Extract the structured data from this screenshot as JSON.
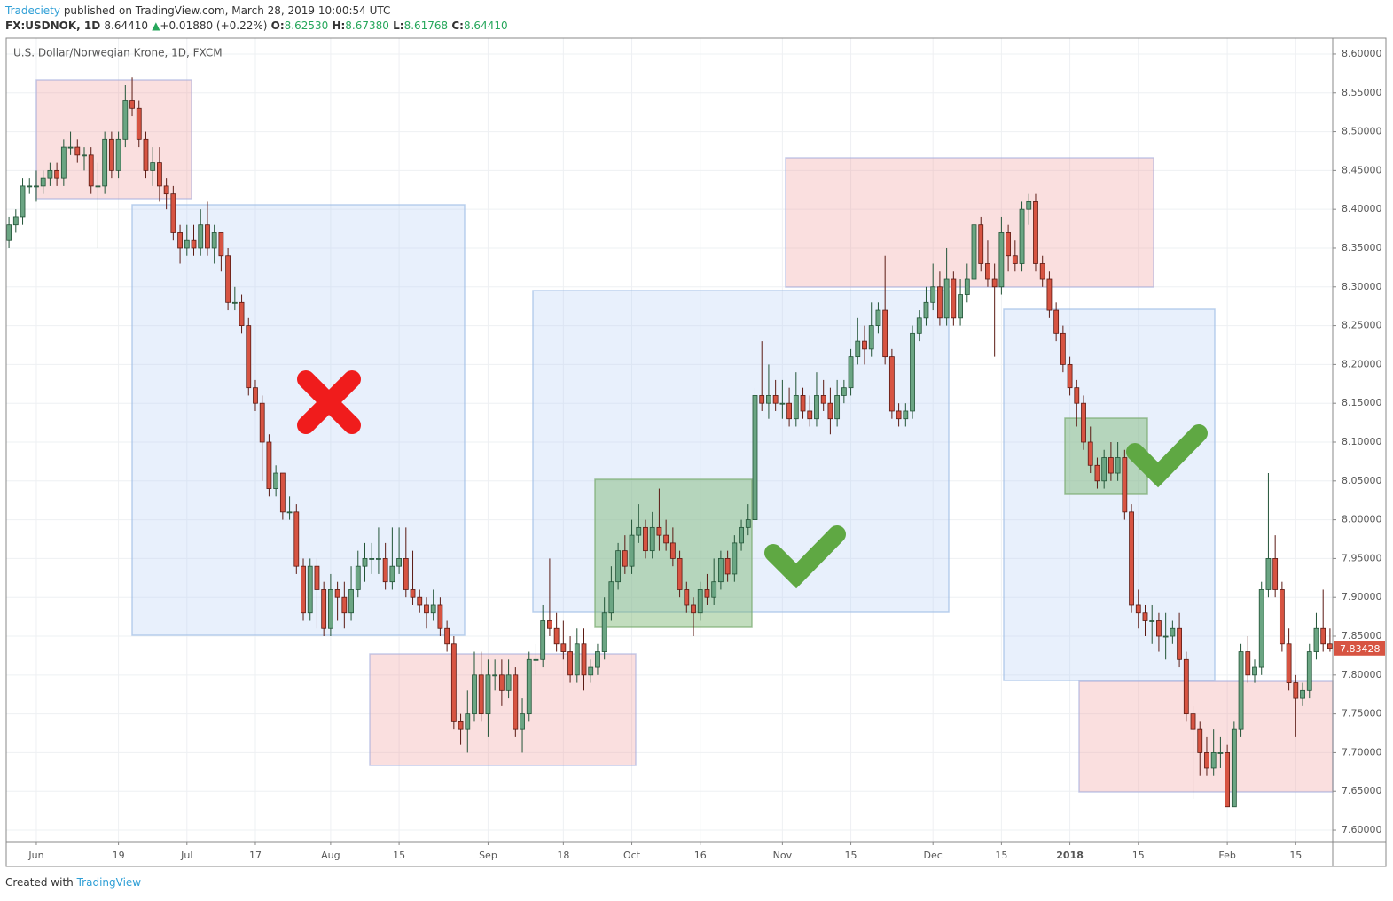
{
  "header": {
    "author": "Tradeciety",
    "published": "published on TradingView.com, March 28, 2019 10:00:54 UTC",
    "symbol": "FX:USDNOK, 1D",
    "last": "8.64410",
    "arrow": "▲",
    "change": "+0.01880 (+0.22%)",
    "o_label": "O:",
    "o": "8.62530",
    "h_label": "H:",
    "h": "8.67380",
    "l_label": "L:",
    "l": "8.61768",
    "c_label": "C:",
    "c": "8.64410"
  },
  "footer": {
    "prefix": "Created with",
    "brand": "TradingView"
  },
  "chart_data": {
    "type": "candlestick",
    "title": "U.S. Dollar/Norwegian Krone, 1D, FXCM",
    "up_color": "#6ba583",
    "down_color": "#d75442",
    "last_color": "#d75442",
    "grid": true,
    "xlim": [
      -0.4,
      193.4
    ],
    "ylim": [
      7.5852,
      8.6205
    ],
    "xticks": [
      {
        "value": 4,
        "label": "Jun"
      },
      {
        "value": 16,
        "label": "19"
      },
      {
        "value": 26,
        "label": "Jul"
      },
      {
        "value": 36,
        "label": "17"
      },
      {
        "value": 47,
        "label": "Aug"
      },
      {
        "value": 57,
        "label": "15"
      },
      {
        "value": 70,
        "label": "Sep"
      },
      {
        "value": 81,
        "label": "18"
      },
      {
        "value": 91,
        "label": "Oct"
      },
      {
        "value": 101,
        "label": "16"
      },
      {
        "value": 113,
        "label": "Nov"
      },
      {
        "value": 123,
        "label": "15"
      },
      {
        "value": 135,
        "label": "Dec"
      },
      {
        "value": 145,
        "label": "15"
      },
      {
        "value": 155,
        "label": "2018"
      },
      {
        "value": 165,
        "label": "15"
      },
      {
        "value": 178,
        "label": "Feb"
      },
      {
        "value": 188,
        "label": "15"
      }
    ],
    "yticks": [
      {
        "value": 7.6,
        "label": "7.60000"
      },
      {
        "value": 7.65,
        "label": "7.65000"
      },
      {
        "value": 7.7,
        "label": "7.70000"
      },
      {
        "value": 7.75,
        "label": "7.75000"
      },
      {
        "value": 7.8,
        "label": "7.80000"
      },
      {
        "value": 7.85,
        "label": "7.85000"
      },
      {
        "value": 7.9,
        "label": "7.90000"
      },
      {
        "value": 7.95,
        "label": "7.95000"
      },
      {
        "value": 8.0,
        "label": "8.00000"
      },
      {
        "value": 8.05,
        "label": "8.05000"
      },
      {
        "value": 8.1,
        "label": "8.10000"
      },
      {
        "value": 8.15,
        "label": "8.15000"
      },
      {
        "value": 8.2,
        "label": "8.20000"
      },
      {
        "value": 8.25,
        "label": "8.25000"
      },
      {
        "value": 8.3,
        "label": "8.30000"
      },
      {
        "value": 8.35,
        "label": "8.35000"
      },
      {
        "value": 8.4,
        "label": "8.40000"
      },
      {
        "value": 8.45,
        "label": "8.45000"
      },
      {
        "value": 8.5,
        "label": "8.50000"
      },
      {
        "value": 8.55,
        "label": "8.55000"
      },
      {
        "value": 8.6,
        "label": "8.60000"
      }
    ],
    "candles": [
      [
        8.36,
        8.39,
        8.35,
        8.38
      ],
      [
        8.38,
        8.4,
        8.37,
        8.39
      ],
      [
        8.39,
        8.44,
        8.38,
        8.43
      ],
      [
        8.43,
        8.44,
        8.42,
        8.43
      ],
      [
        8.43,
        8.45,
        8.41,
        8.43
      ],
      [
        8.43,
        8.45,
        8.42,
        8.44
      ],
      [
        8.44,
        8.46,
        8.43,
        8.45
      ],
      [
        8.45,
        8.46,
        8.43,
        8.44
      ],
      [
        8.44,
        8.49,
        8.43,
        8.48
      ],
      [
        8.48,
        8.5,
        8.47,
        8.48
      ],
      [
        8.48,
        8.49,
        8.46,
        8.47
      ],
      [
        8.47,
        8.48,
        8.45,
        8.47
      ],
      [
        8.47,
        8.48,
        8.42,
        8.43
      ],
      [
        8.43,
        8.46,
        8.35,
        8.43
      ],
      [
        8.43,
        8.5,
        8.42,
        8.49
      ],
      [
        8.49,
        8.5,
        8.44,
        8.45
      ],
      [
        8.45,
        8.5,
        8.44,
        8.49
      ],
      [
        8.49,
        8.56,
        8.48,
        8.54
      ],
      [
        8.54,
        8.57,
        8.52,
        8.53
      ],
      [
        8.53,
        8.54,
        8.48,
        8.49
      ],
      [
        8.49,
        8.5,
        8.44,
        8.45
      ],
      [
        8.45,
        8.48,
        8.43,
        8.46
      ],
      [
        8.46,
        8.48,
        8.41,
        8.43
      ],
      [
        8.43,
        8.44,
        8.4,
        8.42
      ],
      [
        8.42,
        8.43,
        8.36,
        8.37
      ],
      [
        8.37,
        8.38,
        8.33,
        8.35
      ],
      [
        8.35,
        8.38,
        8.34,
        8.36
      ],
      [
        8.36,
        8.38,
        8.34,
        8.35
      ],
      [
        8.35,
        8.4,
        8.34,
        8.38
      ],
      [
        8.38,
        8.41,
        8.34,
        8.35
      ],
      [
        8.35,
        8.38,
        8.33,
        8.37
      ],
      [
        8.37,
        8.37,
        8.32,
        8.34
      ],
      [
        8.34,
        8.35,
        8.27,
        8.28
      ],
      [
        8.28,
        8.3,
        8.27,
        8.28
      ],
      [
        8.28,
        8.29,
        8.24,
        8.25
      ],
      [
        8.25,
        8.26,
        8.16,
        8.17
      ],
      [
        8.17,
        8.18,
        8.14,
        8.15
      ],
      [
        8.15,
        8.16,
        8.05,
        8.1
      ],
      [
        8.1,
        8.11,
        8.03,
        8.04
      ],
      [
        8.04,
        8.07,
        8.03,
        8.06
      ],
      [
        8.06,
        8.06,
        8.0,
        8.01
      ],
      [
        8.01,
        8.03,
        8.0,
        8.01
      ],
      [
        8.01,
        8.02,
        7.93,
        7.94
      ],
      [
        7.94,
        7.95,
        7.87,
        7.88
      ],
      [
        7.88,
        7.95,
        7.87,
        7.94
      ],
      [
        7.94,
        7.95,
        7.86,
        7.91
      ],
      [
        7.91,
        7.92,
        7.85,
        7.86
      ],
      [
        7.86,
        7.93,
        7.85,
        7.91
      ],
      [
        7.91,
        7.92,
        7.87,
        7.9
      ],
      [
        7.9,
        7.92,
        7.86,
        7.88
      ],
      [
        7.88,
        7.94,
        7.87,
        7.91
      ],
      [
        7.91,
        7.96,
        7.9,
        7.94
      ],
      [
        7.94,
        7.97,
        7.92,
        7.95
      ],
      [
        7.95,
        7.97,
        7.93,
        7.95
      ],
      [
        7.95,
        7.99,
        7.93,
        7.95
      ],
      [
        7.95,
        7.97,
        7.91,
        7.92
      ],
      [
        7.92,
        7.99,
        7.91,
        7.94
      ],
      [
        7.94,
        7.99,
        7.93,
        7.95
      ],
      [
        7.95,
        7.99,
        7.9,
        7.91
      ],
      [
        7.91,
        7.96,
        7.89,
        7.9
      ],
      [
        7.9,
        7.91,
        7.88,
        7.89
      ],
      [
        7.89,
        7.9,
        7.86,
        7.88
      ],
      [
        7.88,
        7.91,
        7.87,
        7.89
      ],
      [
        7.89,
        7.9,
        7.85,
        7.86
      ],
      [
        7.86,
        7.87,
        7.83,
        7.84
      ],
      [
        7.84,
        7.85,
        7.73,
        7.74
      ],
      [
        7.74,
        7.75,
        7.71,
        7.73
      ],
      [
        7.73,
        7.78,
        7.7,
        7.75
      ],
      [
        7.75,
        7.83,
        7.74,
        7.8
      ],
      [
        7.8,
        7.83,
        7.74,
        7.75
      ],
      [
        7.75,
        7.82,
        7.72,
        7.8
      ],
      [
        7.8,
        7.82,
        7.78,
        7.8
      ],
      [
        7.8,
        7.82,
        7.76,
        7.78
      ],
      [
        7.78,
        7.82,
        7.77,
        7.8
      ],
      [
        7.8,
        7.81,
        7.72,
        7.73
      ],
      [
        7.73,
        7.77,
        7.7,
        7.75
      ],
      [
        7.75,
        7.83,
        7.74,
        7.82
      ],
      [
        7.82,
        7.84,
        7.8,
        7.82
      ],
      [
        7.82,
        7.89,
        7.81,
        7.87
      ],
      [
        7.87,
        7.95,
        7.85,
        7.86
      ],
      [
        7.86,
        7.88,
        7.83,
        7.84
      ],
      [
        7.84,
        7.87,
        7.82,
        7.83
      ],
      [
        7.83,
        7.85,
        7.79,
        7.8
      ],
      [
        7.8,
        7.86,
        7.79,
        7.84
      ],
      [
        7.84,
        7.86,
        7.78,
        7.8
      ],
      [
        7.8,
        7.82,
        7.79,
        7.81
      ],
      [
        7.81,
        7.84,
        7.8,
        7.83
      ],
      [
        7.83,
        7.9,
        7.82,
        7.88
      ],
      [
        7.88,
        7.94,
        7.87,
        7.92
      ],
      [
        7.92,
        7.97,
        7.91,
        7.96
      ],
      [
        7.96,
        7.98,
        7.93,
        7.94
      ],
      [
        7.94,
        8.0,
        7.93,
        7.98
      ],
      [
        7.98,
        8.02,
        7.97,
        7.99
      ],
      [
        7.99,
        8.0,
        7.95,
        7.96
      ],
      [
        7.96,
        8.01,
        7.95,
        7.99
      ],
      [
        7.99,
        8.04,
        7.96,
        7.98
      ],
      [
        7.98,
        8.0,
        7.96,
        7.97
      ],
      [
        7.97,
        7.99,
        7.94,
        7.95
      ],
      [
        7.95,
        7.96,
        7.9,
        7.91
      ],
      [
        7.91,
        7.92,
        7.88,
        7.89
      ],
      [
        7.89,
        7.9,
        7.85,
        7.88
      ],
      [
        7.88,
        7.92,
        7.87,
        7.91
      ],
      [
        7.91,
        7.93,
        7.89,
        7.9
      ],
      [
        7.9,
        7.95,
        7.89,
        7.92
      ],
      [
        7.92,
        7.96,
        7.91,
        7.95
      ],
      [
        7.95,
        7.96,
        7.92,
        7.93
      ],
      [
        7.93,
        7.98,
        7.92,
        7.97
      ],
      [
        7.97,
        8.0,
        7.96,
        7.99
      ],
      [
        7.99,
        8.02,
        7.98,
        8.0
      ],
      [
        8.0,
        8.17,
        7.99,
        8.16
      ],
      [
        8.16,
        8.23,
        8.14,
        8.15
      ],
      [
        8.15,
        8.2,
        8.13,
        8.16
      ],
      [
        8.16,
        8.18,
        8.14,
        8.15
      ],
      [
        8.15,
        8.18,
        8.13,
        8.15
      ],
      [
        8.15,
        8.17,
        8.12,
        8.13
      ],
      [
        8.13,
        8.19,
        8.12,
        8.16
      ],
      [
        8.16,
        8.17,
        8.13,
        8.14
      ],
      [
        8.14,
        8.16,
        8.12,
        8.13
      ],
      [
        8.13,
        8.19,
        8.12,
        8.16
      ],
      [
        8.16,
        8.18,
        8.14,
        8.15
      ],
      [
        8.15,
        8.17,
        8.11,
        8.13
      ],
      [
        8.13,
        8.18,
        8.12,
        8.16
      ],
      [
        8.16,
        8.18,
        8.15,
        8.17
      ],
      [
        8.17,
        8.22,
        8.16,
        8.21
      ],
      [
        8.21,
        8.26,
        8.2,
        8.23
      ],
      [
        8.23,
        8.25,
        8.2,
        8.22
      ],
      [
        8.22,
        8.28,
        8.21,
        8.25
      ],
      [
        8.25,
        8.28,
        8.24,
        8.27
      ],
      [
        8.27,
        8.34,
        8.2,
        8.21
      ],
      [
        8.21,
        8.22,
        8.13,
        8.14
      ],
      [
        8.14,
        8.15,
        8.12,
        8.13
      ],
      [
        8.13,
        8.15,
        8.12,
        8.14
      ],
      [
        8.14,
        8.25,
        8.13,
        8.24
      ],
      [
        8.24,
        8.27,
        8.23,
        8.26
      ],
      [
        8.26,
        8.3,
        8.25,
        8.28
      ],
      [
        8.28,
        8.33,
        8.27,
        8.3
      ],
      [
        8.3,
        8.32,
        8.25,
        8.26
      ],
      [
        8.26,
        8.35,
        8.25,
        8.31
      ],
      [
        8.31,
        8.32,
        8.25,
        8.26
      ],
      [
        8.26,
        8.31,
        8.25,
        8.29
      ],
      [
        8.29,
        8.33,
        8.28,
        8.31
      ],
      [
        8.31,
        8.39,
        8.3,
        8.38
      ],
      [
        8.38,
        8.39,
        8.32,
        8.33
      ],
      [
        8.33,
        8.36,
        8.3,
        8.31
      ],
      [
        8.31,
        8.33,
        8.21,
        8.3
      ],
      [
        8.3,
        8.39,
        8.29,
        8.37
      ],
      [
        8.37,
        8.38,
        8.32,
        8.34
      ],
      [
        8.34,
        8.36,
        8.32,
        8.33
      ],
      [
        8.33,
        8.41,
        8.32,
        8.4
      ],
      [
        8.4,
        8.42,
        8.38,
        8.41
      ],
      [
        8.41,
        8.42,
        8.32,
        8.33
      ],
      [
        8.33,
        8.34,
        8.3,
        8.31
      ],
      [
        8.31,
        8.32,
        8.26,
        8.27
      ],
      [
        8.27,
        8.28,
        8.23,
        8.24
      ],
      [
        8.24,
        8.25,
        8.19,
        8.2
      ],
      [
        8.2,
        8.21,
        8.16,
        8.17
      ],
      [
        8.17,
        8.18,
        8.12,
        8.15
      ],
      [
        8.15,
        8.16,
        8.09,
        8.1
      ],
      [
        8.1,
        8.12,
        8.06,
        8.07
      ],
      [
        8.07,
        8.08,
        8.04,
        8.05
      ],
      [
        8.05,
        8.09,
        8.04,
        8.08
      ],
      [
        8.08,
        8.1,
        8.05,
        8.06
      ],
      [
        8.06,
        8.1,
        8.05,
        8.08
      ],
      [
        8.08,
        8.09,
        8.0,
        8.01
      ],
      [
        8.01,
        8.02,
        7.88,
        7.89
      ],
      [
        7.89,
        7.91,
        7.86,
        7.88
      ],
      [
        7.88,
        7.89,
        7.85,
        7.87
      ],
      [
        7.87,
        7.89,
        7.84,
        7.87
      ],
      [
        7.87,
        7.88,
        7.83,
        7.85
      ],
      [
        7.85,
        7.88,
        7.82,
        7.85
      ],
      [
        7.85,
        7.87,
        7.84,
        7.86
      ],
      [
        7.86,
        7.88,
        7.81,
        7.82
      ],
      [
        7.82,
        7.83,
        7.74,
        7.75
      ],
      [
        7.75,
        7.76,
        7.64,
        7.73
      ],
      [
        7.73,
        7.74,
        7.67,
        7.7
      ],
      [
        7.7,
        7.72,
        7.67,
        7.68
      ],
      [
        7.68,
        7.73,
        7.67,
        7.7
      ],
      [
        7.7,
        7.72,
        7.68,
        7.7
      ],
      [
        7.7,
        7.71,
        7.63,
        7.63
      ],
      [
        7.63,
        7.74,
        7.63,
        7.73
      ],
      [
        7.73,
        7.84,
        7.72,
        7.83
      ],
      [
        7.83,
        7.85,
        7.79,
        7.8
      ],
      [
        7.8,
        7.82,
        7.79,
        7.81
      ],
      [
        7.81,
        7.92,
        7.8,
        7.91
      ],
      [
        7.91,
        8.06,
        7.9,
        7.95
      ],
      [
        7.95,
        7.98,
        7.9,
        7.91
      ],
      [
        7.91,
        7.92,
        7.83,
        7.84
      ],
      [
        7.84,
        7.86,
        7.78,
        7.79
      ],
      [
        7.79,
        7.8,
        7.72,
        7.77
      ],
      [
        7.77,
        7.79,
        7.76,
        7.78
      ],
      [
        7.78,
        7.84,
        7.77,
        7.83
      ],
      [
        7.83,
        7.88,
        7.82,
        7.86
      ],
      [
        7.86,
        7.91,
        7.83,
        7.84
      ],
      [
        7.84,
        7.86,
        7.83,
        7.83428
      ]
    ]
  }
}
